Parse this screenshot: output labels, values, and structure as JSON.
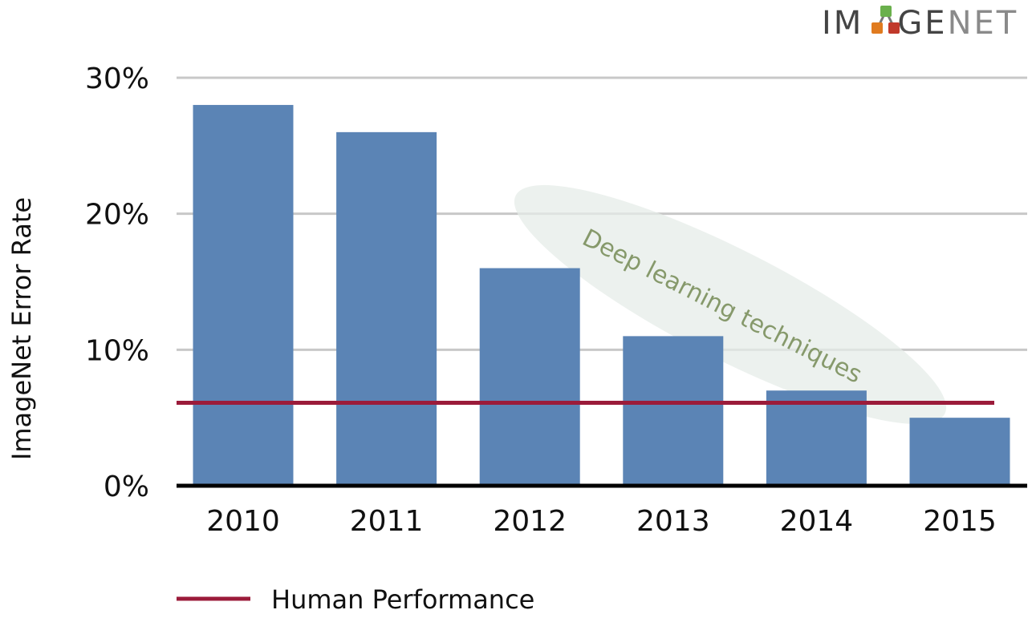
{
  "logo": {
    "prefix": "IM",
    "suffix_dark": "GE",
    "suffix_light": "NET",
    "dark_color": "#444444",
    "light_color": "#8a8a8a",
    "node_colors": [
      "#6ab04c",
      "#e07b1f",
      "#c0392b"
    ]
  },
  "chart_data": {
    "type": "bar",
    "categories": [
      "2010",
      "2011",
      "2012",
      "2013",
      "2014",
      "2015"
    ],
    "values": [
      28,
      26,
      16,
      11,
      7,
      5
    ],
    "ylabel": "ImageNet Error Rate",
    "ylim": [
      0,
      30
    ],
    "yticks": [
      0,
      10,
      20,
      30
    ],
    "ytick_labels": [
      "0%",
      "10%",
      "20%",
      "30%"
    ],
    "grid": true,
    "bar_color": "#5b84b5",
    "reference_line": {
      "name": "Human Performance",
      "value": 6.1,
      "color": "#9b1b3a"
    },
    "annotation": {
      "text": "Deep learning techniques",
      "color": "#86996b"
    },
    "legend": {
      "placement": "bottom-left",
      "entries": [
        {
          "label": "Human Performance",
          "color": "#9b1b3a"
        }
      ]
    }
  }
}
